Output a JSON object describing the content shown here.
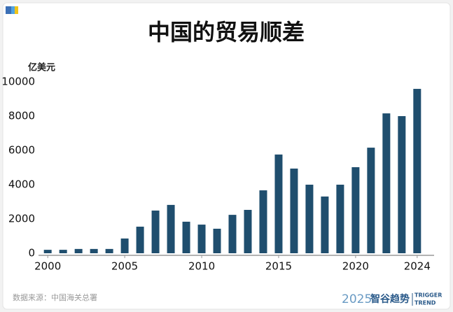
{
  "chart_data": {
    "type": "bar",
    "title": "中国的贸易顺差",
    "y_axis_label": "亿美元",
    "x": [
      2000,
      2001,
      2002,
      2003,
      2004,
      2005,
      2006,
      2007,
      2008,
      2009,
      2010,
      2011,
      2012,
      2013,
      2014,
      2015,
      2016,
      2017,
      2018,
      2019,
      2020,
      2021,
      2022,
      2023,
      2024
    ],
    "values": [
      200,
      200,
      250,
      250,
      250,
      860,
      1550,
      2490,
      2820,
      1840,
      1670,
      1430,
      2240,
      2530,
      3670,
      5760,
      4940,
      4000,
      3310,
      4000,
      5020,
      6160,
      8160,
      8000,
      9590
    ],
    "color": "#1f4e6e",
    "xlim": [
      1999.4,
      2025.1
    ],
    "xticks": [
      2000,
      2005,
      2010,
      2015,
      2020,
      2024
    ],
    "ylim": [
      0,
      10000
    ],
    "yticks": [
      0,
      2000,
      4000,
      6000,
      8000,
      10000
    ],
    "grid": false,
    "source": "数据来源：中国海关总署",
    "logo": {
      "year": "2025",
      "name": "智谷趋势",
      "en_line1": "TRIGGER",
      "en_line2": "TREND"
    }
  }
}
